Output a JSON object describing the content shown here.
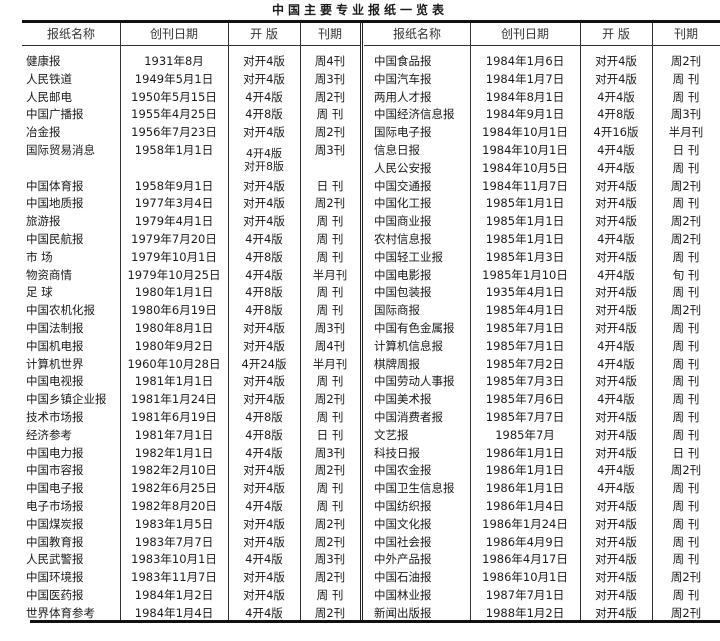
{
  "title": "中国主要专业报纸一览表",
  "headers": {
    "name": "报纸名称",
    "date": "创刊日期",
    "size": "开 版",
    "freq": "刊期"
  },
  "left_rows": [
    {
      "name": "健康报",
      "date": "1931年8月",
      "size": "对开4版",
      "freq": "周4刊"
    },
    {
      "name": "人民铁道",
      "date": "1949年5月1日",
      "size": "对开4版",
      "freq": "周3刊"
    },
    {
      "name": "人民邮电",
      "date": "1950年5月15日",
      "size": "4开4版",
      "freq": "周2刊"
    },
    {
      "name": "中国广播报",
      "date": "1955年4月25日",
      "size": "4开8版",
      "freq": "周 刊"
    },
    {
      "name": "冶金报",
      "date": "1956年7月23日",
      "size": "对开4版",
      "freq": "周2刊"
    },
    {
      "name": "国际贸易消息",
      "date": "1958年1月1日",
      "size": "4开4版",
      "size2": "对开8版",
      "freq": "周3刊"
    },
    {
      "name": "中国体育报",
      "date": "1958年9月1日",
      "size": "对开4版",
      "freq": "日 刊"
    },
    {
      "name": "中国地质报",
      "date": "1977年3月4日",
      "size": "对开4版",
      "freq": "周2刊"
    },
    {
      "name": "旅游报",
      "date": "1979年4月1日",
      "size": "对开4版",
      "freq": "周 刊"
    },
    {
      "name": "中国民航报",
      "date": "1979年7月20日",
      "size": "4开4版",
      "freq": "周 刊"
    },
    {
      "name": "市 场",
      "date": "1979年10月1日",
      "size": "4开8版",
      "freq": "周 刊"
    },
    {
      "name": "物资商情",
      "date": "1979年10月25日",
      "size": "4开4版",
      "freq": "半月刊"
    },
    {
      "name": "足 球",
      "date": "1980年1月1日",
      "size": "4开8版",
      "freq": "周 刊"
    },
    {
      "name": "中国农机化报",
      "date": "1980年6月19日",
      "size": "4开8版",
      "freq": "周 刊"
    },
    {
      "name": "中国法制报",
      "date": "1980年8月1日",
      "size": "对开4版",
      "freq": "周3刊"
    },
    {
      "name": "中国机电报",
      "date": "1980年9月2日",
      "size": "对开4版",
      "freq": "周4刊"
    },
    {
      "name": "计算机世界",
      "date": "1960年10月28日",
      "size": "4开24版",
      "freq": "半月刊"
    },
    {
      "name": "中国电视报",
      "date": "1981年1月1日",
      "size": "对开4版",
      "freq": "周 刊"
    },
    {
      "name": "中国乡镇企业报",
      "date": "1981年1月24日",
      "size": "对开4版",
      "freq": "周2刊"
    },
    {
      "name": "技术市场报",
      "date": "1981年6月19日",
      "size": "4开8版",
      "freq": "周 刊"
    },
    {
      "name": "经济参考",
      "date": "1981年7月1日",
      "size": "4开8版",
      "freq": "日 刊"
    },
    {
      "name": "中国电力报",
      "date": "1982年1月1日",
      "size": "4开4版",
      "freq": "周3刊"
    },
    {
      "name": "中国市容报",
      "date": "1982年2月10日",
      "size": "对开4版",
      "freq": "周2刊"
    },
    {
      "name": "中国电子报",
      "date": "1982年6月25日",
      "size": "对开4版",
      "freq": "周 刊"
    },
    {
      "name": "电子市场报",
      "date": "1982年8月20日",
      "size": "4开4版",
      "freq": "周 刊"
    },
    {
      "name": "中国煤炭报",
      "date": "1983年1月5日",
      "size": "对开4版",
      "freq": "周2刊"
    },
    {
      "name": "中国教育报",
      "date": "1983年7月7日",
      "size": "对开4版",
      "freq": "周2刊"
    },
    {
      "name": "人民武警报",
      "date": "1983年10月1日",
      "size": "4开4版",
      "freq": "周3刊"
    },
    {
      "name": "中国环境报",
      "date": "1983年11月7日",
      "size": "对开4版",
      "freq": "周2刊"
    },
    {
      "name": "中国医药报",
      "date": "1984年1月2日",
      "size": "对开4版",
      "freq": "周 刊"
    },
    {
      "name": "世界体育参考",
      "date": "1984年1月4日",
      "size": "4开4版",
      "freq": "周2刊"
    }
  ],
  "right_rows": [
    {
      "name": "中国食品报",
      "date": "1984年1月6日",
      "size": "对开4版",
      "freq": "周2刊"
    },
    {
      "name": "中国汽车报",
      "date": "1984年1月7日",
      "size": "对开4版",
      "freq": "周 刊"
    },
    {
      "name": "两用人才报",
      "date": "1984年8月1日",
      "size": "4开4版",
      "freq": "周 刊"
    },
    {
      "name": "中国经济信息报",
      "date": "1984年9月1日",
      "size": "4开8版",
      "freq": "周3刊"
    },
    {
      "name": "国际电子报",
      "date": "1984年10月1日",
      "size": "4开16版",
      "freq": "半月刊"
    },
    {
      "name": "信息日报",
      "date": "1984年10月1日",
      "size": "4开4版",
      "freq": "日 刊"
    },
    {
      "name": "人民公安报",
      "date": "1984年10月5日",
      "size": "4开4版",
      "freq": "周 刊"
    },
    {
      "name": "中国交通报",
      "date": "1984年11月7日",
      "size": "对开4版",
      "freq": "周2刊"
    },
    {
      "name": "中国化工报",
      "date": "1985年1月1日",
      "size": "对开4版",
      "freq": "周 刊"
    },
    {
      "name": "中国商业报",
      "date": "1985年1月1日",
      "size": "对开4版",
      "freq": "周2刊"
    },
    {
      "name": "农村信息报",
      "date": "1985年1月1日",
      "size": "4开4版",
      "freq": "周2刊"
    },
    {
      "name": "中国轻工业报",
      "date": "1985年1月3日",
      "size": "对开4版",
      "freq": "周 刊"
    },
    {
      "name": "中国电影报",
      "date": "1985年1月10日",
      "size": "4开4版",
      "freq": "旬 刊"
    },
    {
      "name": "中国包装报",
      "date": "1935年4月1日",
      "size": "对开4版",
      "freq": "周 刊"
    },
    {
      "name": "国际商报",
      "date": "1985年4月1日",
      "size": "对开4版",
      "freq": "周2刊"
    },
    {
      "name": "中国有色金属报",
      "date": "1985年7月1日",
      "size": "对开4版",
      "freq": "周 刊"
    },
    {
      "name": "计算机信息报",
      "date": "1985年7月1日",
      "size": "4开4版",
      "freq": "周 刊"
    },
    {
      "name": "棋牌周报",
      "date": "1985年7月2日",
      "size": "4开4版",
      "freq": "周 刊"
    },
    {
      "name": "中国劳动人事报",
      "date": "1985年7月3日",
      "size": "对开4版",
      "freq": "周 刊"
    },
    {
      "name": "中国美术报",
      "date": "1985年7月6日",
      "size": "4开4版",
      "freq": "周 刊"
    },
    {
      "name": "中国消费者报",
      "date": "1985年7月7日",
      "size": "对开4版",
      "freq": "周 刊"
    },
    {
      "name": "文艺报",
      "date": "1985年7月",
      "size": "对开4版",
      "freq": "周 刊"
    },
    {
      "name": "科技日报",
      "date": "1986年1月1日",
      "size": "对开4版",
      "freq": "日 刊"
    },
    {
      "name": "中国农金报",
      "date": "1986年1月1日",
      "size": "4开4版",
      "freq": "周2刊"
    },
    {
      "name": "中国卫生信息报",
      "date": "1986年1月1日",
      "size": "4开4版",
      "freq": "周 刊"
    },
    {
      "name": "中国纺织报",
      "date": "1986年1月4日",
      "size": "对开4版",
      "freq": "周 刊"
    },
    {
      "name": "中国文化报",
      "date": "1986年1月24日",
      "size": "对开4版",
      "freq": "周 刊"
    },
    {
      "name": "中国社会报",
      "date": "1986年4月9日",
      "size": "对开4版",
      "freq": "周 刊"
    },
    {
      "name": "中外产品报",
      "date": "1986年4月17日",
      "size": "对开4版",
      "freq": "周 刊"
    },
    {
      "name": "中国石油报",
      "date": "1986年10月1日",
      "size": "对开4版",
      "freq": "周2刊"
    },
    {
      "name": "中国林业报",
      "date": "1987年7月1日",
      "size": "对开4版",
      "freq": "周 刊"
    },
    {
      "name": "新闻出版报",
      "date": "1988年1月2日",
      "size": "对开4版",
      "freq": "周2刊"
    }
  ]
}
